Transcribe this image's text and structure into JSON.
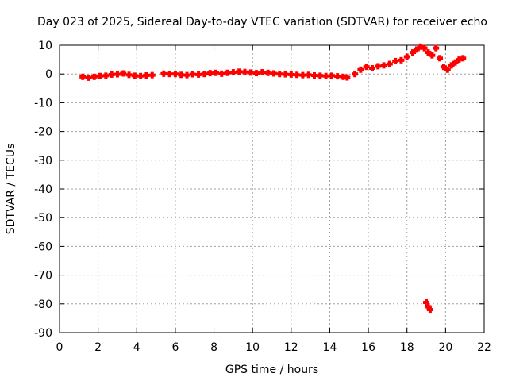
{
  "chart_data": {
    "type": "scatter",
    "title": "Day 023 of 2025, Sidereal Day-to-day VTEC variation (SDTVAR) for receiver echo",
    "xlabel": "GPS time / hours",
    "ylabel": "SDTVAR / TECUs",
    "xlim": [
      0,
      22
    ],
    "ylim": [
      -90,
      10
    ],
    "xticks": [
      0,
      2,
      4,
      6,
      8,
      10,
      12,
      14,
      16,
      18,
      20,
      22
    ],
    "yticks": [
      10,
      0,
      -10,
      -20,
      -30,
      -40,
      -50,
      -60,
      -70,
      -80,
      -90
    ],
    "xtick_labels": [
      "0",
      "2",
      "4",
      "6",
      "8",
      "10",
      "12",
      "14",
      "16",
      "18",
      "20",
      "22"
    ],
    "ytick_labels": [
      "10",
      "0",
      "-10",
      "-20",
      "-30",
      "-40",
      "-50",
      "-60",
      "-70",
      "-80",
      "-90"
    ],
    "grid": true,
    "marker": "plus",
    "series": [
      {
        "name": "SDTVAR",
        "color": "#ff0000",
        "points": [
          [
            1.2,
            -1.0
          ],
          [
            1.5,
            -1.3
          ],
          [
            1.8,
            -1.0
          ],
          [
            2.1,
            -0.7
          ],
          [
            2.4,
            -0.6
          ],
          [
            2.7,
            -0.2
          ],
          [
            3.0,
            -0.1
          ],
          [
            3.3,
            0.2
          ],
          [
            3.6,
            -0.3
          ],
          [
            3.9,
            -0.6
          ],
          [
            4.2,
            -0.7
          ],
          [
            4.5,
            -0.5
          ],
          [
            4.8,
            -0.4
          ],
          [
            5.4,
            0.1
          ],
          [
            5.7,
            0.0
          ],
          [
            6.0,
            0.0
          ],
          [
            6.3,
            -0.3
          ],
          [
            6.6,
            -0.4
          ],
          [
            6.9,
            -0.1
          ],
          [
            7.2,
            -0.2
          ],
          [
            7.5,
            0.0
          ],
          [
            7.8,
            0.3
          ],
          [
            8.1,
            0.4
          ],
          [
            8.4,
            0.1
          ],
          [
            8.7,
            0.4
          ],
          [
            9.0,
            0.6
          ],
          [
            9.3,
            0.8
          ],
          [
            9.6,
            0.7
          ],
          [
            9.9,
            0.5
          ],
          [
            10.2,
            0.3
          ],
          [
            10.5,
            0.6
          ],
          [
            10.8,
            0.4
          ],
          [
            11.1,
            0.2
          ],
          [
            11.4,
            0.0
          ],
          [
            11.7,
            -0.1
          ],
          [
            12.0,
            -0.2
          ],
          [
            12.3,
            -0.3
          ],
          [
            12.6,
            -0.4
          ],
          [
            12.9,
            -0.3
          ],
          [
            13.2,
            -0.5
          ],
          [
            13.5,
            -0.6
          ],
          [
            13.8,
            -0.7
          ],
          [
            14.1,
            -0.6
          ],
          [
            14.4,
            -0.8
          ],
          [
            14.7,
            -1.0
          ],
          [
            14.9,
            -1.2
          ],
          [
            15.3,
            0.0
          ],
          [
            15.6,
            1.5
          ],
          [
            15.9,
            2.5
          ],
          [
            16.2,
            2.0
          ],
          [
            16.5,
            2.7
          ],
          [
            16.8,
            3.0
          ],
          [
            17.1,
            3.5
          ],
          [
            17.4,
            4.5
          ],
          [
            17.7,
            4.8
          ],
          [
            18.0,
            6.0
          ],
          [
            18.3,
            7.5
          ],
          [
            18.5,
            8.5
          ],
          [
            18.7,
            9.5
          ],
          [
            18.9,
            9.0
          ],
          [
            19.1,
            7.5
          ],
          [
            19.3,
            6.5
          ],
          [
            19.5,
            9.0
          ],
          [
            19.7,
            5.5
          ],
          [
            19.9,
            2.5
          ],
          [
            20.1,
            1.5
          ],
          [
            20.3,
            3.0
          ],
          [
            20.5,
            4.0
          ],
          [
            20.7,
            5.0
          ],
          [
            20.9,
            5.5
          ],
          [
            19.0,
            -79.5
          ],
          [
            19.1,
            -81.0
          ],
          [
            19.2,
            -82.0
          ]
        ]
      }
    ]
  }
}
